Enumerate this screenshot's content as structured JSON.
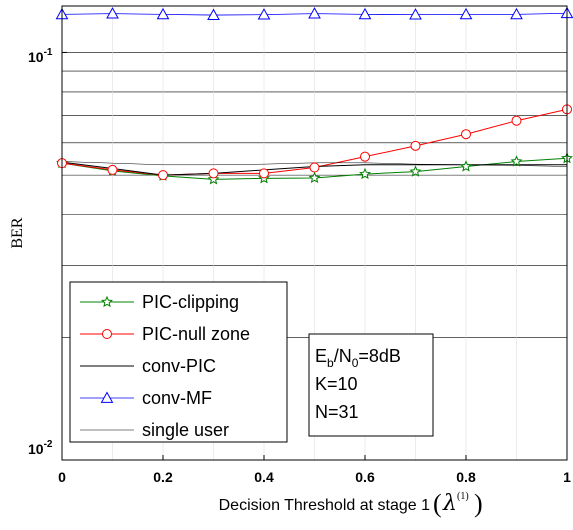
{
  "chart_data": {
    "type": "line",
    "xlabel": "Decision Threshold at stage 1",
    "xlabel_symbol": "λ",
    "xlabel_superscript": "(1)",
    "ylabel": "BER",
    "xlim": [
      0,
      1
    ],
    "ylim": [
      0.01,
      0.13
    ],
    "yscale": "log",
    "x_ticks": [
      "0",
      "0.2",
      "0.4",
      "0.6",
      "0.8",
      "1"
    ],
    "y_ticks": [
      {
        "base": "10",
        "exp": "-1"
      },
      {
        "base": "10",
        "exp": "-2"
      }
    ],
    "grid": true,
    "legend_position": "bottom-left",
    "x": [
      0,
      0.1,
      0.2,
      0.3,
      0.4,
      0.5,
      0.6,
      0.7,
      0.8,
      0.9,
      1.0
    ],
    "series": [
      {
        "name": "PIC-clipping",
        "color": "#008000",
        "marker": "star",
        "values": [
          0.0535,
          0.0512,
          0.0498,
          0.0488,
          0.0491,
          0.0492,
          0.0503,
          0.051,
          0.0525,
          0.054,
          0.055
        ]
      },
      {
        "name": "PIC-null zone",
        "color": "#ff0000",
        "marker": "circle",
        "values": [
          0.0535,
          0.0515,
          0.05,
          0.0505,
          0.0505,
          0.0522,
          0.0555,
          0.059,
          0.063,
          0.068,
          0.0725
        ]
      },
      {
        "name": "conv-PIC",
        "color": "#000000",
        "marker": "none",
        "values": [
          0.0538,
          0.0519,
          0.05,
          0.0505,
          0.0515,
          0.0525,
          0.053,
          0.053,
          0.053,
          0.053,
          0.053
        ]
      },
      {
        "name": "conv-MF",
        "color": "#0000ff",
        "marker": "triangle",
        "values": [
          0.124,
          0.1245,
          0.124,
          0.1235,
          0.1238,
          0.1245,
          0.124,
          0.1238,
          0.124,
          0.124,
          0.1248
        ]
      },
      {
        "name": "single user",
        "color": "#000000",
        "marker": "none",
        "values": [
          0.054,
          0.0535,
          0.053,
          0.053,
          0.0532,
          0.0536,
          0.0536,
          0.0532,
          0.053,
          0.0528,
          0.0525
        ]
      }
    ],
    "annotation": {
      "lines": [
        [
          {
            "t": "E"
          },
          {
            "t": "b",
            "sub": true
          },
          {
            "t": "/N"
          },
          {
            "t": "0",
            "sub": true
          },
          {
            "t": "=8dB"
          }
        ],
        [
          {
            "t": "K=10"
          }
        ],
        [
          {
            "t": "N=31"
          }
        ]
      ]
    }
  }
}
